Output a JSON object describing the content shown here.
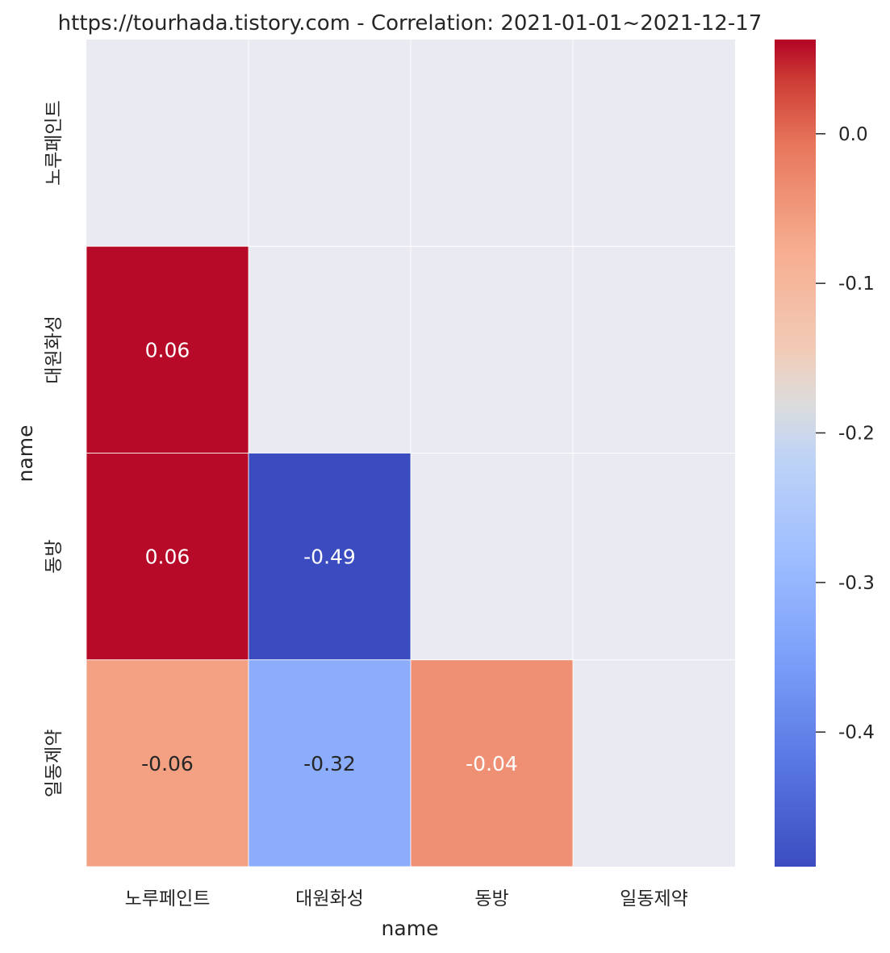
{
  "chart_data": {
    "type": "heatmap",
    "title": "https://tourhada.tistory.com - Correlation: 2021-01-01~2021-12-17",
    "xlabel": "name",
    "ylabel": "name",
    "x_categories": [
      "노루페인트",
      "대원화성",
      "동방",
      "일동제약"
    ],
    "y_categories": [
      "노루페인트",
      "대원화성",
      "동방",
      "일동제약"
    ],
    "mask": "upper-triangle-including-diagonal",
    "cells": [
      {
        "row": "대원화성",
        "col": "노루페인트",
        "value": 0.06,
        "label": "0.06"
      },
      {
        "row": "동방",
        "col": "노루페인트",
        "value": 0.06,
        "label": "0.06"
      },
      {
        "row": "동방",
        "col": "대원화성",
        "value": -0.49,
        "label": "-0.49"
      },
      {
        "row": "일동제약",
        "col": "노루페인트",
        "value": -0.06,
        "label": "-0.06"
      },
      {
        "row": "일동제약",
        "col": "대원화성",
        "value": -0.32,
        "label": "-0.32"
      },
      {
        "row": "일동제약",
        "col": "동방",
        "value": -0.04,
        "label": "-0.04"
      }
    ],
    "colormap": "coolwarm",
    "colorbar": {
      "vmin": -0.49,
      "vmax": 0.063,
      "ticks": [
        0.0,
        -0.1,
        -0.2,
        -0.3,
        -0.4
      ],
      "tick_labels": [
        "0.0",
        "-0.1",
        "-0.2",
        "-0.3",
        "-0.4"
      ]
    },
    "masked_color": "#eaeaf2",
    "grid": false,
    "legend": "colorbar-right"
  }
}
